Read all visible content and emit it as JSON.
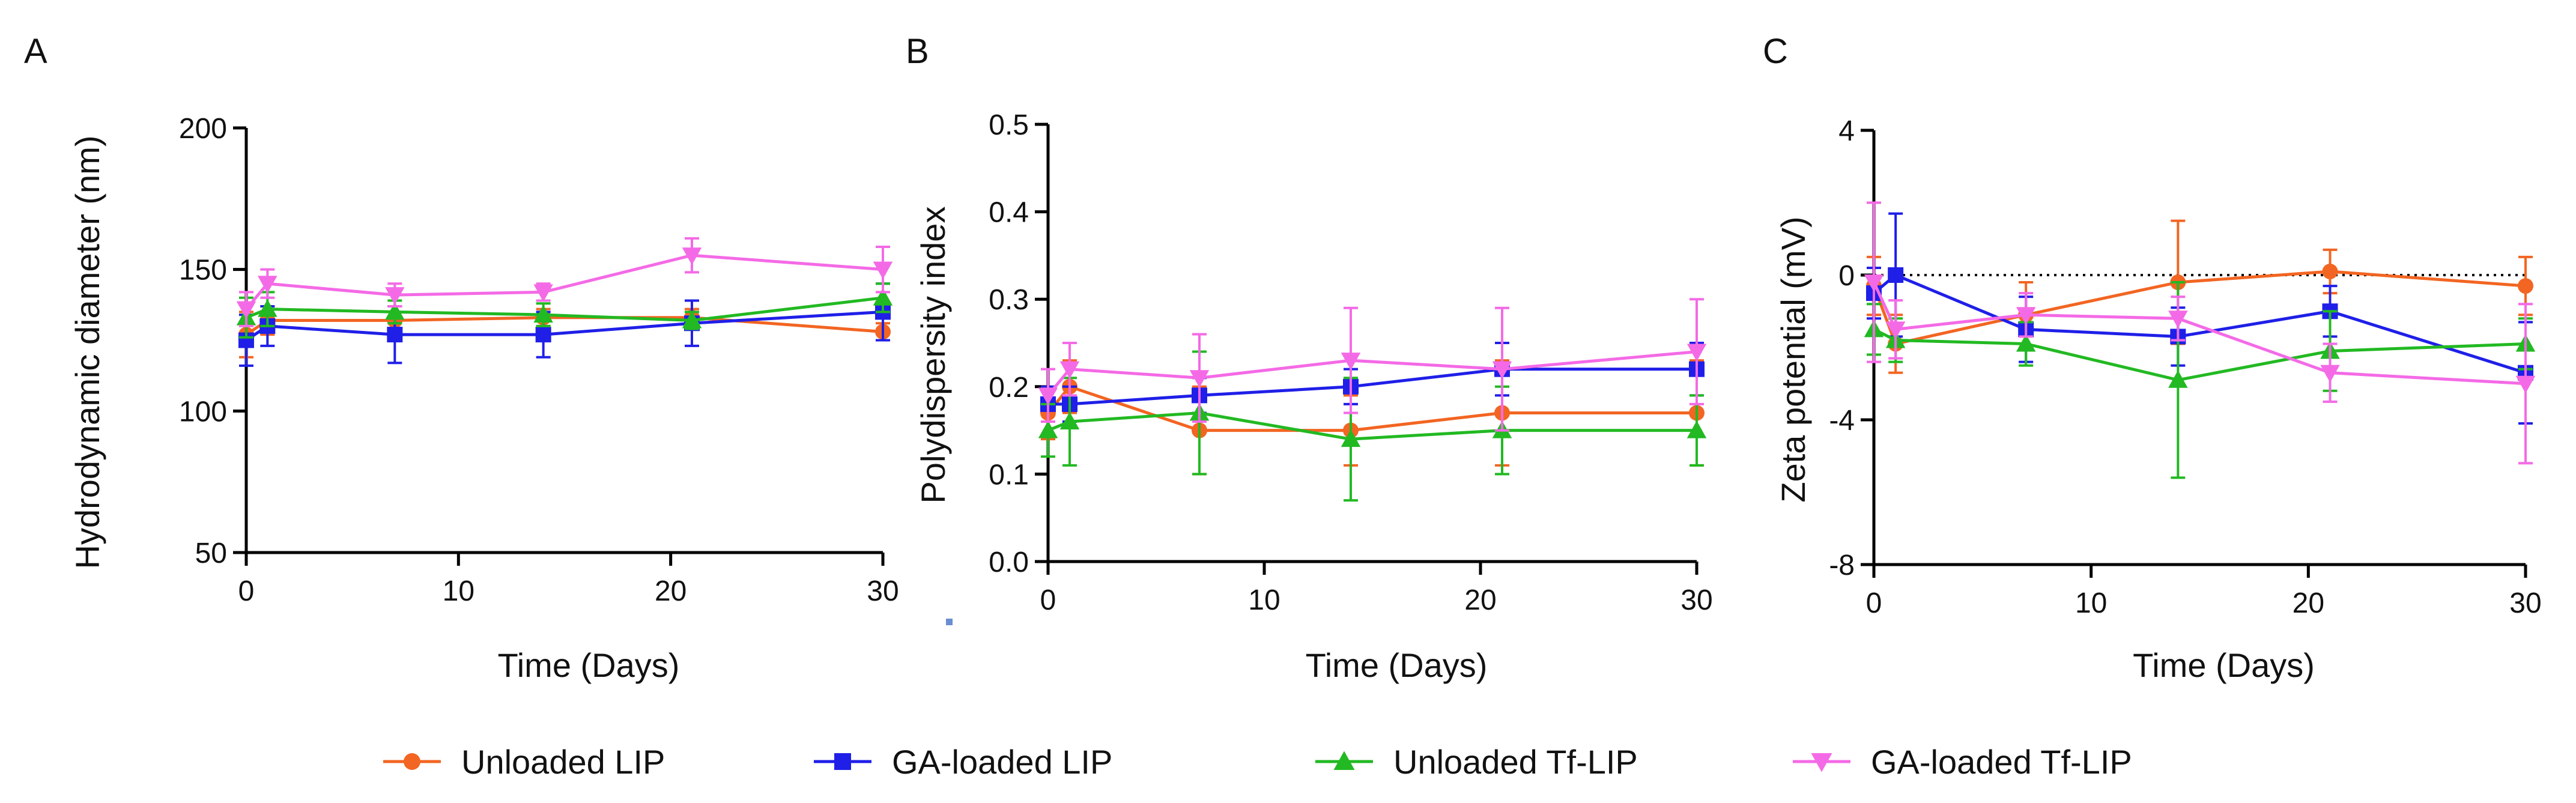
{
  "colors": {
    "unloaded_lip": "#F26522",
    "ga_loaded_lip": "#1F1FE8",
    "unloaded_tf_lip": "#22B922",
    "ga_loaded_tf_lip": "#F46AE6",
    "axis": "#000000"
  },
  "legend": [
    {
      "name": "Unloaded LIP",
      "color": "#F26522",
      "marker": "circle"
    },
    {
      "name": "GA-loaded LIP",
      "color": "#1F1FE8",
      "marker": "square"
    },
    {
      "name": "Unloaded Tf-LIP",
      "color": "#22B922",
      "marker": "triangle-up"
    },
    {
      "name": "GA-loaded Tf-LIP",
      "color": "#F46AE6",
      "marker": "triangle-down"
    }
  ],
  "chart_data": [
    {
      "panel_label": "A",
      "type": "line",
      "xlabel": "Time (Days)",
      "ylabel": "Hydrodynamic diameter (nm)",
      "xlim": [
        0,
        30
      ],
      "ylim": [
        50,
        200
      ],
      "xticks": [
        0,
        10,
        20,
        30
      ],
      "yticks": [
        50,
        100,
        150,
        200
      ],
      "reference_line": null,
      "x": [
        0,
        1,
        7,
        14,
        21,
        30
      ],
      "series": [
        {
          "name": "Unloaded LIP",
          "values": [
            127,
            132,
            132,
            133,
            133,
            128
          ],
          "errors": [
            8,
            5,
            5,
            3,
            3,
            3
          ]
        },
        {
          "name": "GA-loaded LIP",
          "values": [
            125,
            130,
            127,
            127,
            131,
            135
          ],
          "errors": [
            9,
            7,
            10,
            8,
            8,
            10
          ]
        },
        {
          "name": "Unloaded Tf-LIP",
          "values": [
            133,
            136,
            135,
            134,
            132,
            140
          ],
          "errors": [
            7,
            6,
            4,
            4,
            3,
            5
          ]
        },
        {
          "name": "GA-loaded Tf-LIP",
          "values": [
            136,
            145,
            141,
            142,
            155,
            150
          ],
          "errors": [
            6,
            5,
            4,
            3,
            6,
            8
          ]
        }
      ]
    },
    {
      "panel_label": "B",
      "type": "line",
      "xlabel": "Time (Days)",
      "ylabel": "Polydispersity index",
      "xlim": [
        0,
        30
      ],
      "ylim": [
        0,
        0.5
      ],
      "xticks": [
        0,
        10,
        20,
        30
      ],
      "yticks": [
        0.0,
        0.1,
        0.2,
        0.3,
        0.4,
        0.5
      ],
      "reference_line": 0,
      "x": [
        0,
        1,
        7,
        14,
        21,
        30
      ],
      "series": [
        {
          "name": "Unloaded LIP",
          "values": [
            0.17,
            0.2,
            0.15,
            0.15,
            0.17,
            0.17
          ],
          "errors": [
            0.03,
            0.03,
            0.05,
            0.04,
            0.06,
            0.06
          ]
        },
        {
          "name": "GA-loaded LIP",
          "values": [
            0.18,
            0.18,
            0.19,
            0.2,
            0.22,
            0.22
          ],
          "errors": [
            0.02,
            0.02,
            0.02,
            0.02,
            0.03,
            0.03
          ]
        },
        {
          "name": "Unloaded Tf-LIP",
          "values": [
            0.15,
            0.16,
            0.17,
            0.14,
            0.15,
            0.15
          ],
          "errors": [
            0.03,
            0.05,
            0.07,
            0.07,
            0.05,
            0.04
          ]
        },
        {
          "name": "GA-loaded Tf-LIP",
          "values": [
            0.19,
            0.22,
            0.21,
            0.23,
            0.22,
            0.24
          ],
          "errors": [
            0.03,
            0.03,
            0.05,
            0.06,
            0.07,
            0.06
          ]
        }
      ]
    },
    {
      "panel_label": "C",
      "type": "line",
      "xlabel": "Time (Days)",
      "ylabel": "Zeta potential (mV)",
      "xlim": [
        0,
        30
      ],
      "ylim": [
        -8,
        4
      ],
      "xticks": [
        0,
        10,
        20,
        30
      ],
      "yticks": [
        -8,
        -4,
        0,
        4
      ],
      "reference_line": 0,
      "x": [
        0,
        1,
        7,
        14,
        21,
        30
      ],
      "series": [
        {
          "name": "Unloaded LIP",
          "values": [
            -0.3,
            -1.9,
            -1.1,
            -0.2,
            0.1,
            -0.3
          ],
          "errors": [
            0.8,
            0.8,
            0.9,
            1.7,
            0.6,
            0.8
          ]
        },
        {
          "name": "GA-loaded LIP",
          "values": [
            -0.5,
            0.0,
            -1.5,
            -1.7,
            -1.0,
            -2.7
          ],
          "errors": [
            0.7,
            1.7,
            0.9,
            0.8,
            0.7,
            1.4
          ]
        },
        {
          "name": "Unloaded Tf-LIP",
          "values": [
            -1.5,
            -1.8,
            -1.9,
            -2.9,
            -2.1,
            -1.9
          ],
          "errors": [
            0.7,
            0.6,
            0.6,
            2.7,
            1.1,
            0.7
          ]
        },
        {
          "name": "GA-loaded Tf-LIP",
          "values": [
            -0.2,
            -1.5,
            -1.1,
            -1.2,
            -2.7,
            -3.0
          ],
          "errors": [
            2.2,
            0.8,
            0.6,
            0.6,
            0.8,
            2.2
          ]
        }
      ]
    }
  ]
}
